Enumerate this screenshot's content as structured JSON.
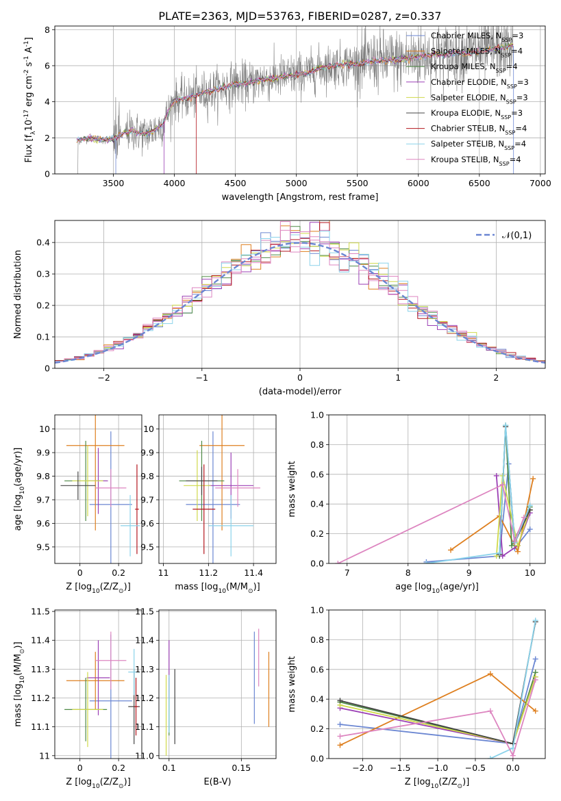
{
  "suptitle": "PLATE=2363, MJD=53763, FIBERID=0287, z=0.337",
  "colors": [
    "#6a86d2",
    "#de7f1f",
    "#4f8a46",
    "#9b3fb5",
    "#cfd94a",
    "#444444",
    "#b3141c",
    "#8ad2ea",
    "#dd85c0",
    "#808080"
  ],
  "chart_data": [
    {
      "id": "spectrum",
      "type": "line",
      "xlabel": "wavelength [Angstrom, rest frame]",
      "ylabel": "Flux [f$_\\lambda$10$^{-17}$ erg cm$^{-2}$ s$^{-1}$ A$^{-1}$]",
      "xlim": [
        3020,
        7040
      ],
      "ylim": [
        0,
        8.2
      ],
      "xticks": [
        3500,
        4000,
        4500,
        5000,
        5500,
        6000,
        6500,
        7000
      ],
      "yticks": [
        0,
        2,
        4,
        6,
        8
      ],
      "legend_placement": "top-right",
      "legend": [
        "Chabrier MILES, N$_{SSP}$=3",
        "Salpeter MILES, N$_{SSP}$=4",
        "Kroupa MILES, N$_{SSP}$=4",
        "Chabrier ELODIE, N$_{SSP}$=3",
        "Salpeter ELODIE, N$_{SSP}$=3",
        "Kroupa ELODIE, N$_{SSP}$=3",
        "Chabrier STELIB, N$_{SSP}$=4",
        "Salpeter STELIB, N$_{SSP}$=4",
        "Kroupa STELIB, N$_{SSP}$=4"
      ],
      "continuum": {
        "x": [
          3200,
          3250,
          3300,
          3350,
          3400,
          3450,
          3500,
          3550,
          3600,
          3650,
          3700,
          3750,
          3800,
          3850,
          3900,
          3950,
          4000,
          4100,
          4200,
          4300,
          4400,
          4500,
          4600,
          4700,
          4800,
          4900,
          5000,
          5100,
          5200,
          5300,
          5400,
          5500,
          5600,
          5700,
          5800,
          5900,
          6000,
          6100,
          6200,
          6300,
          6400,
          6500,
          6600,
          6700,
          6780
        ],
        "y": [
          1.85,
          1.9,
          2.0,
          1.95,
          1.9,
          1.9,
          1.95,
          2.1,
          2.3,
          2.4,
          2.3,
          2.2,
          2.3,
          2.5,
          2.7,
          3.4,
          4.1,
          4.2,
          4.4,
          4.6,
          4.8,
          5.0,
          5.0,
          5.2,
          5.3,
          5.4,
          5.5,
          5.6,
          5.9,
          6.0,
          6.1,
          6.1,
          6.2,
          6.3,
          6.3,
          6.4,
          6.5,
          6.6,
          6.6,
          6.7,
          6.7,
          6.8,
          6.9,
          7.0,
          7.1
        ]
      }
    },
    {
      "id": "residuals",
      "type": "line",
      "xlabel": "(data-model)/error",
      "ylabel": "Normed distribution",
      "xlim": [
        -2.5,
        2.5
      ],
      "ylim": [
        0,
        0.47
      ],
      "xticks": [
        -2,
        -1,
        0,
        1,
        2
      ],
      "yticks": [
        0.0,
        0.1,
        0.2,
        0.3,
        0.4
      ],
      "legend_placement": "top-right",
      "legend": [
        "$\\mathcal{N}(0,1)$"
      ],
      "normal": {
        "mean": 0,
        "sigma": 1
      }
    },
    {
      "id": "age-vs-Z",
      "type": "scatter",
      "xlabel": "Z [log$_{10}$(Z/Z$_\\odot$)]",
      "ylabel": "age  [log$_{10}$(age/yr)]",
      "xlim": [
        -0.13,
        0.32
      ],
      "ylim": [
        9.43,
        10.06
      ],
      "xticks": [
        0.0,
        0.2
      ],
      "yticks": [
        9.5,
        9.6,
        9.7,
        9.8,
        9.9,
        10.0
      ],
      "points": [
        {
          "x": 0.16,
          "y": 9.68,
          "xerr": 0.11,
          "yerr": 0.31,
          "color": 0
        },
        {
          "x": 0.08,
          "y": 9.93,
          "xerr": 0.15,
          "yerr": 0.36,
          "color": 1
        },
        {
          "x": 0.03,
          "y": 9.78,
          "xerr": 0.11,
          "yerr": 0.17,
          "color": 2
        },
        {
          "x": 0.095,
          "y": 9.78,
          "xerr": 0.05,
          "yerr": 0.14,
          "color": 3
        },
        {
          "x": 0.04,
          "y": 9.78,
          "xerr": 0.08,
          "yerr": 0.15,
          "color": 4
        },
        {
          "x": -0.01,
          "y": 9.76,
          "xerr": 0.09,
          "yerr": 0.06,
          "color": 5
        },
        {
          "x": 0.295,
          "y": 9.66,
          "xerr": 0.01,
          "yerr": 0.19,
          "color": 6
        },
        {
          "x": 0.26,
          "y": 9.59,
          "xerr": 0.05,
          "yerr": 0.13,
          "color": 7
        },
        {
          "x": 0.16,
          "y": 9.75,
          "xerr": 0.08,
          "yerr": 0.08,
          "color": 8
        }
      ]
    },
    {
      "id": "age-vs-mass",
      "type": "scatter",
      "xlabel": "mass [log$_{10}$(M/M$_\\odot$)]",
      "ylabel": "",
      "xlim": [
        10.98,
        11.5
      ],
      "ylim": [
        9.43,
        10.06
      ],
      "xticks": [
        11.0,
        11.2,
        11.4
      ],
      "yticks": [
        9.5,
        9.6,
        9.7,
        9.8,
        9.9,
        10.0
      ],
      "points": [
        {
          "x": 11.22,
          "y": 9.68,
          "xerr": 0.12,
          "yerr": 0.31,
          "color": 0
        },
        {
          "x": 11.26,
          "y": 9.93,
          "xerr": 0.1,
          "yerr": 0.36,
          "color": 1
        },
        {
          "x": 11.17,
          "y": 9.78,
          "xerr": 0.1,
          "yerr": 0.17,
          "color": 2
        },
        {
          "x": 11.3,
          "y": 9.76,
          "xerr": 0.1,
          "yerr": 0.14,
          "color": 3
        },
        {
          "x": 11.15,
          "y": 9.76,
          "xerr": 0.06,
          "yerr": 0.15,
          "color": 4
        },
        {
          "x": 11.17,
          "y": 9.78,
          "xerr": 0.07,
          "yerr": 0.06,
          "color": 5
        },
        {
          "x": 11.18,
          "y": 9.66,
          "xerr": 0.05,
          "yerr": 0.19,
          "color": 6
        },
        {
          "x": 11.3,
          "y": 9.59,
          "xerr": 0.1,
          "yerr": 0.13,
          "color": 7
        },
        {
          "x": 11.33,
          "y": 9.75,
          "xerr": 0.1,
          "yerr": 0.08,
          "color": 8
        }
      ]
    },
    {
      "id": "weight-vs-age",
      "type": "line",
      "xlabel": "age  [log$_{10}$(age/yr)]",
      "ylabel": "mass weight",
      "xlim": [
        6.7,
        10.25
      ],
      "ylim": [
        0,
        1.0
      ],
      "xticks": [
        7,
        8,
        9,
        10
      ],
      "yticks": [
        0.0,
        0.2,
        0.4,
        0.6,
        0.8,
        1.0
      ],
      "series": [
        {
          "color": 0,
          "x": [
            8.3,
            9.5,
            9.65,
            9.75,
            10.0
          ],
          "y": [
            0.01,
            0.05,
            0.67,
            0.1,
            0.23
          ]
        },
        {
          "color": 1,
          "x": [
            8.7,
            9.5,
            9.8,
            10.05
          ],
          "y": [
            0.09,
            0.32,
            0.08,
            0.57
          ]
        },
        {
          "color": 2,
          "x": [
            9.5,
            9.6,
            9.7,
            10.0
          ],
          "y": [
            0.05,
            0.93,
            0.12,
            0.38
          ]
        },
        {
          "color": 3,
          "x": [
            9.45,
            9.55,
            9.8,
            10.0
          ],
          "y": [
            0.59,
            0.05,
            0.12,
            0.34
          ]
        },
        {
          "color": 4,
          "x": [
            9.45,
            9.55,
            9.8,
            10.0
          ],
          "y": [
            0.05,
            0.59,
            0.12,
            0.36
          ]
        },
        {
          "color": 5,
          "x": [
            9.5,
            9.6,
            9.75,
            10.0
          ],
          "y": [
            0.06,
            0.92,
            0.14,
            0.36
          ]
        },
        {
          "color": 7,
          "x": [
            8.3,
            9.5,
            9.6,
            9.75,
            10.0
          ],
          "y": [
            0.0,
            0.07,
            0.93,
            0.14,
            0.39
          ]
        },
        {
          "color": 8,
          "x": [
            6.85,
            9.55,
            9.75,
            9.9
          ],
          "y": [
            0.0,
            0.53,
            0.15,
            0.31
          ]
        }
      ]
    },
    {
      "id": "mass-vs-Z",
      "type": "scatter",
      "xlabel": "Z [log$_{10}$(Z/Z$_\\odot$)]",
      "ylabel": "mass [log$_{10}$(M/M$_\\odot$)]",
      "xlim": [
        -0.13,
        0.32
      ],
      "ylim": [
        10.99,
        11.505
      ],
      "xticks": [
        0.0,
        0.2
      ],
      "yticks": [
        11.0,
        11.1,
        11.2,
        11.3,
        11.4,
        11.5
      ],
      "points": [
        {
          "x": 0.16,
          "y": 11.19,
          "xerr": 0.11,
          "yerr": 0.23,
          "color": 0
        },
        {
          "x": 0.08,
          "y": 11.26,
          "xerr": 0.15,
          "yerr": 0.1,
          "color": 1
        },
        {
          "x": 0.03,
          "y": 11.16,
          "xerr": 0.11,
          "yerr": 0.11,
          "color": 2
        },
        {
          "x": 0.095,
          "y": 11.27,
          "xerr": 0.06,
          "yerr": 0.13,
          "color": 3
        },
        {
          "x": 0.04,
          "y": 11.16,
          "xerr": 0.08,
          "yerr": 0.13,
          "color": 4
        },
        {
          "x": 0.28,
          "y": 11.17,
          "xerr": 0.03,
          "yerr": 0.13,
          "color": 5
        },
        {
          "x": 0.28,
          "y": 11.29,
          "xerr": 0.03,
          "yerr": 0.08,
          "color": 7
        },
        {
          "x": 0.29,
          "y": 11.17,
          "xerr": 0.01,
          "yerr": 0.1,
          "color": 6
        },
        {
          "x": 0.16,
          "y": 11.33,
          "xerr": 0.08,
          "yerr": 0.1,
          "color": 8
        }
      ]
    },
    {
      "id": "mass-vs-EBV",
      "type": "scatter",
      "xlabel": "E(B-V)",
      "ylabel": "",
      "xlim": [
        0.093,
        0.174
      ],
      "ylim": [
        10.99,
        11.505
      ],
      "xticks": [
        0.1,
        0.15
      ],
      "yticks": [
        11.0,
        11.1,
        11.2,
        11.3,
        11.4,
        11.5
      ],
      "points": [
        {
          "x": 0.159,
          "y": 11.27,
          "xerr": 0,
          "yerr": 0.16,
          "color": 0
        },
        {
          "x": 0.169,
          "y": 11.23,
          "xerr": 0,
          "yerr": 0.13,
          "color": 1
        },
        {
          "x": 0.1,
          "y": 11.17,
          "xerr": 0,
          "yerr": 0.1,
          "color": 2
        },
        {
          "x": 0.1,
          "y": 11.3,
          "xerr": 0,
          "yerr": 0.1,
          "color": 3
        },
        {
          "x": 0.098,
          "y": 11.14,
          "xerr": 0,
          "yerr": 0.14,
          "color": 4
        },
        {
          "x": 0.104,
          "y": 11.17,
          "xerr": 0,
          "yerr": 0.13,
          "color": 5
        },
        {
          "x": 0.1,
          "y": 11.18,
          "xerr": 0,
          "yerr": 0.1,
          "color": 7
        },
        {
          "x": 0.162,
          "y": 11.34,
          "xerr": 0,
          "yerr": 0.1,
          "color": 8
        }
      ]
    },
    {
      "id": "weight-vs-Z",
      "type": "line",
      "xlabel": "Z [log$_{10}$(Z/Z$_\\odot$)]",
      "ylabel": "mass weight",
      "xlim": [
        -2.45,
        0.43
      ],
      "ylim": [
        0,
        1.0
      ],
      "xticks": [
        -2.0,
        -1.5,
        -1.0,
        -0.5,
        0.0
      ],
      "yticks": [
        0.0,
        0.2,
        0.4,
        0.6,
        0.8,
        1.0
      ],
      "series": [
        {
          "color": 0,
          "x": [
            -2.3,
            0.0,
            0.3
          ],
          "y": [
            0.23,
            0.1,
            0.67
          ]
        },
        {
          "color": 1,
          "x": [
            -2.3,
            -0.3,
            0.3
          ],
          "y": [
            0.09,
            0.57,
            0.32
          ]
        },
        {
          "color": 2,
          "x": [
            -2.3,
            0.0,
            0.3
          ],
          "y": [
            0.38,
            0.1,
            0.58
          ]
        },
        {
          "color": 3,
          "x": [
            -2.3,
            0.0,
            0.3
          ],
          "y": [
            0.34,
            0.1,
            0.55
          ]
        },
        {
          "color": 4,
          "x": [
            -2.3,
            0.0,
            0.3
          ],
          "y": [
            0.36,
            0.1,
            0.55
          ]
        },
        {
          "color": 5,
          "x": [
            -2.3,
            0.0,
            0.3
          ],
          "y": [
            0.39,
            0.1,
            0.92
          ]
        },
        {
          "color": 7,
          "x": [
            -0.3,
            0.0,
            0.3
          ],
          "y": [
            0.0,
            0.07,
            0.93
          ]
        },
        {
          "color": 8,
          "x": [
            -2.3,
            -0.3,
            0.0,
            0.3
          ],
          "y": [
            0.15,
            0.32,
            0.02,
            0.53
          ]
        }
      ]
    }
  ]
}
